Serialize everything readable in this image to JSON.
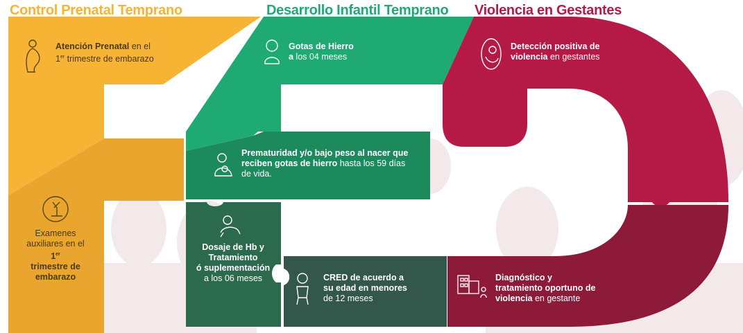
{
  "headers": {
    "control": "Control Prenatal Temprano",
    "desarrollo": "Desarrollo Infantil Temprano",
    "violencia": "Violencia en Gestantes"
  },
  "colors": {
    "yellow": "#F6B334",
    "yellow_dark": "#E9A52E",
    "green": "#1FAA73",
    "green_mid": "#1D8A5E",
    "green_dark": "#2C6A4E",
    "green_deep": "#33574A",
    "crimson": "#B41A45",
    "crimson_dark": "#8E1A3A"
  },
  "cards": {
    "atencion": {
      "bold": "Atención Prenatal",
      "rest1": " en el",
      "sup": "er",
      "line2_prefix": "1",
      "line2": " trimestre de embarazo",
      "icon": "pregnant-woman-icon"
    },
    "examenes": {
      "line1": "Examenes",
      "line2a": "auxiliares en el ",
      "line2b": "1",
      "sup": "er",
      "line3": "trimestre de",
      "line4": "embarazo",
      "icon": "microscope-icon"
    },
    "gotas": {
      "bold1": "Gotas de Hierro",
      "bold2": "a",
      "rest": " los 04 meses",
      "icon": "baby-icon"
    },
    "prematuridad": {
      "bold1": "Prematuridad y/o bajo peso al nacer que",
      "bold2": "reciben gotas de hierro",
      "rest2": " hasta los 59 días",
      "line3": "de vida.",
      "icon": "mother-baby-icon"
    },
    "dosaje": {
      "l1": "Dosaje de Hb y",
      "l2": "Tratamiento",
      "l3": "ó suplementación",
      "l4": "a los 06 meses",
      "icon": "crawling-baby-icon"
    },
    "cred": {
      "l1": "CRED de acuerdo a",
      "l2": "su edad en menores",
      "l3": "de 12 meses",
      "icon": "toddler-icon"
    },
    "deteccion": {
      "bold1": "Detección positiva de",
      "bold2": "violencia",
      "rest": " en gestantes",
      "icon": "fetus-icon"
    },
    "diagnostico": {
      "l1": "Diagnóstico y",
      "l2": "tratamiento oportuno de",
      "bold3": "violencia",
      "rest3": " en gestante",
      "icon": "hospital-icon"
    }
  }
}
